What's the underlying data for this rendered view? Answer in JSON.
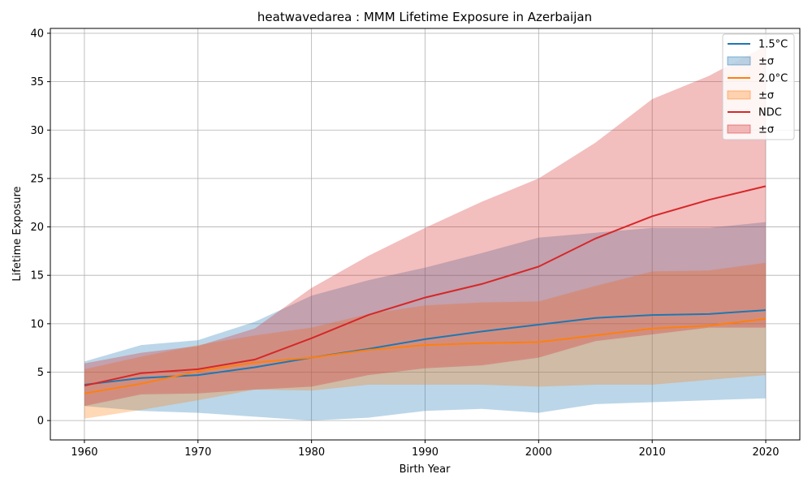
{
  "chart_data": {
    "type": "line",
    "title": "heatwavedarea : MMM Lifetime Exposure in Azerbaijan",
    "xlabel": "Birth Year",
    "ylabel": "Lifetime Exposure",
    "xlim": [
      1957,
      2023
    ],
    "ylim": [
      -2,
      40.5
    ],
    "x_ticks": [
      1960,
      1970,
      1980,
      1990,
      2000,
      2010,
      2020
    ],
    "y_ticks": [
      0,
      5,
      10,
      15,
      20,
      25,
      30,
      35,
      40
    ],
    "grid": true,
    "legend_position": "top-right",
    "x": [
      1960,
      1965,
      1970,
      1975,
      1980,
      1985,
      1990,
      1995,
      2000,
      2005,
      2010,
      2015,
      2020
    ],
    "series": [
      {
        "name": "1.5°C",
        "band_name": "±σ",
        "color": "#1f77b4",
        "values": [
          3.7,
          4.4,
          4.7,
          5.5,
          6.5,
          7.4,
          8.4,
          9.2,
          9.9,
          10.6,
          10.9,
          11.0,
          11.4
        ],
        "lower": [
          1.5,
          1.0,
          0.8,
          0.4,
          0.0,
          0.3,
          1.0,
          1.2,
          0.8,
          1.7,
          1.9,
          2.1,
          2.3
        ],
        "upper": [
          6.1,
          7.8,
          8.3,
          10.2,
          12.9,
          14.5,
          15.8,
          17.3,
          18.9,
          19.4,
          19.9,
          19.9,
          20.5
        ]
      },
      {
        "name": "2.0°C",
        "band_name": "±σ",
        "color": "#ff7f0e",
        "values": [
          2.8,
          3.8,
          5.1,
          6.0,
          6.5,
          7.3,
          7.8,
          8.0,
          8.1,
          8.8,
          9.5,
          9.8,
          10.5
        ],
        "lower": [
          0.2,
          1.1,
          2.1,
          3.2,
          3.1,
          3.7,
          3.7,
          3.7,
          3.5,
          3.7,
          3.7,
          4.2,
          4.7
        ],
        "upper": [
          5.3,
          6.6,
          7.8,
          8.8,
          9.6,
          11.0,
          11.9,
          12.2,
          12.3,
          13.9,
          15.4,
          15.5,
          16.3
        ]
      },
      {
        "name": "NDC",
        "band_name": "±σ",
        "color": "#d62728",
        "values": [
          3.6,
          4.9,
          5.3,
          6.3,
          8.5,
          10.9,
          12.7,
          14.1,
          15.9,
          18.8,
          21.1,
          22.8,
          24.2
        ],
        "lower": [
          1.5,
          2.7,
          2.8,
          3.2,
          3.5,
          4.7,
          5.4,
          5.7,
          6.5,
          8.2,
          8.9,
          9.6,
          9.6
        ],
        "upper": [
          5.9,
          7.0,
          7.7,
          9.5,
          13.7,
          17.0,
          19.9,
          22.6,
          25.0,
          28.7,
          33.2,
          35.6,
          38.7
        ]
      }
    ]
  }
}
